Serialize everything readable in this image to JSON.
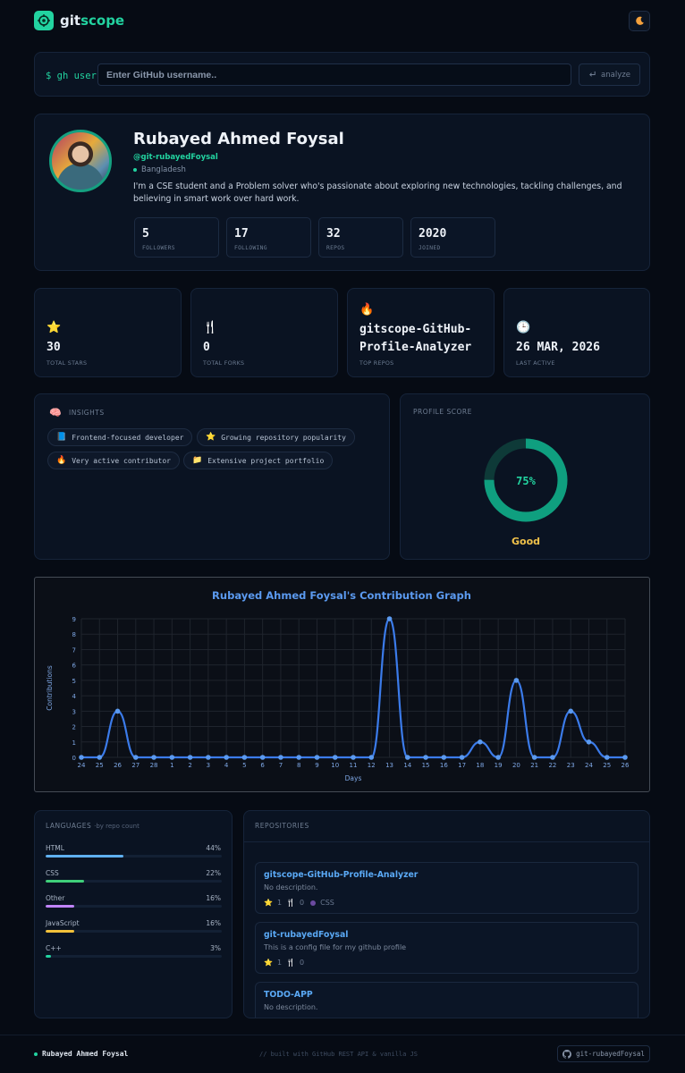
{
  "app": {
    "logo_prefix": "git",
    "logo_accent": "scope"
  },
  "search": {
    "prompt": "$ gh user",
    "placeholder": "Enter GitHub username..",
    "value": "",
    "button_label": "analyze"
  },
  "profile": {
    "name": "Rubayed Ahmed Foysal",
    "handle": "@git-rubayedFoysal",
    "location": "Bangladesh",
    "bio": "I'm a CSE student and a Problem solver who's passionate about exploring new technologies, tackling challenges, and believing in smart work over hard work.",
    "stats": [
      {
        "value": "5",
        "label": "FOLLOWERS"
      },
      {
        "value": "17",
        "label": "FOLLOWING"
      },
      {
        "value": "32",
        "label": "REPOS"
      },
      {
        "value": "2020",
        "label": "JOINED"
      }
    ]
  },
  "summary": [
    {
      "icon": "star-icon",
      "glyph": "⭐",
      "value": "30",
      "label": "TOTAL STARS"
    },
    {
      "icon": "fork-knife-icon",
      "glyph": "🍴",
      "value": "0",
      "label": "TOTAL FORKS"
    },
    {
      "icon": "fire-icon",
      "glyph": "🔥",
      "value": "gitscope-GitHub-Profile-Analyzer",
      "value_line1": "gitscope-GitHub-",
      "value_line2": "Profile-Analyzer",
      "label": "TOP REPOS"
    },
    {
      "icon": "clock-icon",
      "glyph": "🕒",
      "value": "26 MAR, 2026",
      "label": "LAST ACTIVE"
    }
  ],
  "insights": {
    "title": "INSIGHTS",
    "chips": [
      {
        "icon": "book-icon",
        "glyph": "📘",
        "label": "Frontend-focused developer"
      },
      {
        "icon": "star-icon",
        "glyph": "⭐",
        "label": "Growing repository popularity"
      },
      {
        "icon": "fire-icon",
        "glyph": "🔥",
        "label": "Very active contributor"
      },
      {
        "icon": "folder-icon",
        "glyph": "📁",
        "label": "Extensive project portfolio"
      }
    ]
  },
  "score": {
    "title": "PROFILE SCORE",
    "value": 75,
    "value_label": "75%",
    "grade": "Good",
    "colors": {
      "ring": "#0f9f7f",
      "track": "#0e3a38",
      "grade": "#f1c24a"
    }
  },
  "chart_data": {
    "type": "line",
    "title": "Rubayed Ahmed Foysal's Contribution Graph",
    "xlabel": "Days",
    "ylabel": "Contributions",
    "categories": [
      "24",
      "25",
      "26",
      "27",
      "28",
      "1",
      "2",
      "3",
      "4",
      "5",
      "6",
      "7",
      "8",
      "9",
      "10",
      "11",
      "12",
      "13",
      "14",
      "15",
      "16",
      "17",
      "18",
      "19",
      "20",
      "21",
      "22",
      "23",
      "24",
      "25",
      "26"
    ],
    "values": [
      0,
      0,
      3,
      0,
      0,
      0,
      0,
      0,
      0,
      0,
      0,
      0,
      0,
      0,
      0,
      0,
      0,
      9,
      0,
      0,
      0,
      0,
      1,
      0,
      5,
      0,
      0,
      3,
      1,
      0,
      0
    ],
    "ylim": [
      0,
      9
    ],
    "yticks": [
      "0",
      "1",
      "2",
      "3",
      "4",
      "5",
      "6",
      "7",
      "8",
      "9"
    ],
    "grid": true,
    "color": "#3b7bea"
  },
  "languages": {
    "title": "LANGUAGES",
    "subtitle": "·by repo count",
    "items": [
      {
        "name": "HTML",
        "percent": 44,
        "label": "44%",
        "color": "#5fb0f0"
      },
      {
        "name": "CSS",
        "percent": 22,
        "label": "22%",
        "color": "#3fcf7a"
      },
      {
        "name": "Other",
        "percent": 16,
        "label": "16%",
        "color": "#c084fc"
      },
      {
        "name": "JavaScript",
        "percent": 16,
        "label": "16%",
        "color": "#f3c13a"
      },
      {
        "name": "C++",
        "percent": 3,
        "label": "3%",
        "color": "#22d3a0"
      }
    ]
  },
  "repositories": {
    "title": "REPOSITORIES",
    "items": [
      {
        "name": "gitscope-GitHub-Profile-Analyzer",
        "description": "No description.",
        "stars": "1",
        "forks": "0",
        "language": "CSS"
      },
      {
        "name": "git-rubayedFoysal",
        "description": "This is a config file for my github profile",
        "stars": "1",
        "forks": "0",
        "language": ""
      },
      {
        "name": "TODO-APP",
        "description": "No description.",
        "stars": "",
        "forks": "",
        "language": ""
      }
    ]
  },
  "footer": {
    "name": "Rubayed Ahmed Foysal",
    "tagline": "// built with GitHub REST API & vanilla JS",
    "github_label": "git-rubayedFoysal"
  }
}
